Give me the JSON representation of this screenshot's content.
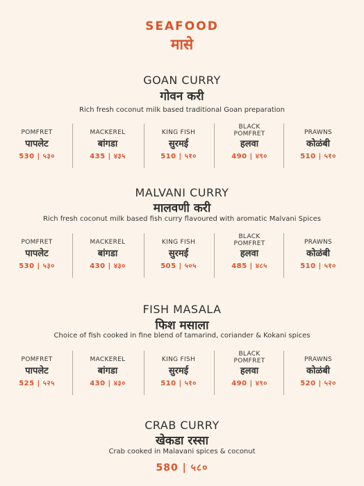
{
  "header": {
    "title": "SEAFOOD",
    "subtitle": "मासे"
  },
  "dishes": [
    {
      "title": "GOAN CURRY",
      "title_mr": "गोवन करी",
      "desc": "Rich fresh coconut milk based traditional Goan preparation",
      "items": [
        {
          "en": "POMFRET",
          "mr": "पापलेट",
          "price": "530 | ५३०"
        },
        {
          "en": "MACKEREL",
          "mr": "बांगडा",
          "price": "435 | ४३५"
        },
        {
          "en": "KING FISH",
          "mr": "सुरमई",
          "price": "510 | ५१०"
        },
        {
          "en": "BLACK POMFRET",
          "mr": "हलवा",
          "price": "490 | ४९०"
        },
        {
          "en": "PRAWNS",
          "mr": "कोळंबी",
          "price": "510 | ५१०"
        }
      ]
    },
    {
      "title": "MALVANI CURRY",
      "title_mr": "मालवणी करी",
      "desc": "Rich fresh coconut milk based fish curry flavoured with aromatic Malvani Spices",
      "items": [
        {
          "en": "POMFRET",
          "mr": "पापलेट",
          "price": "530 | ५३०"
        },
        {
          "en": "MACKEREL",
          "mr": "बांगडा",
          "price": "430 | ४३०"
        },
        {
          "en": "KING FISH",
          "mr": "सुरमई",
          "price": "505 | ५०५"
        },
        {
          "en": "BLACK POMFRET",
          "mr": "हलवा",
          "price": "485 | ४८५"
        },
        {
          "en": "PRAWNS",
          "mr": "कोळंबी",
          "price": "510 | ५१०"
        }
      ]
    },
    {
      "title": "FISH MASALA",
      "title_mr": "फिश मसाला",
      "desc": "Choice of fish cooked in fine blend of tamarind, coriander & Kokani spices",
      "items": [
        {
          "en": "POMFRET",
          "mr": "पापलेट",
          "price": "525 | ५२५"
        },
        {
          "en": "MACKEREL",
          "mr": "बांगडा",
          "price": "430 | ४३०"
        },
        {
          "en": "KING FISH",
          "mr": "सुरमई",
          "price": "510 | ५१०"
        },
        {
          "en": "BLACK POMFRET",
          "mr": "हलवा",
          "price": "490 | ४९०"
        },
        {
          "en": "PRAWNS",
          "mr": "कोळंबी",
          "price": "520 | ५२०"
        }
      ]
    }
  ],
  "crab": {
    "title": "CRAB CURRY",
    "title_mr": "खेकडा रस्सा",
    "desc": "Crab cooked in Malavani spices & coconut",
    "price": "580 | ५८०"
  },
  "colors": {
    "accent": "#d9532b",
    "background": "#fcf4ea",
    "divider": "#b8a89a"
  }
}
